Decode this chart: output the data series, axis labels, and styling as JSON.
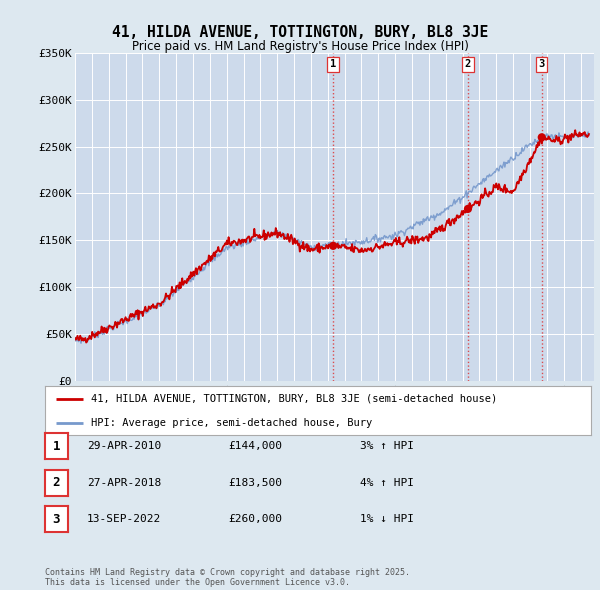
{
  "title": "41, HILDA AVENUE, TOTTINGTON, BURY, BL8 3JE",
  "subtitle": "Price paid vs. HM Land Registry's House Price Index (HPI)",
  "background_color": "#dde8f0",
  "plot_bg_color": "#cddaeb",
  "ylim": [
    0,
    350000
  ],
  "yticks": [
    0,
    50000,
    100000,
    150000,
    200000,
    250000,
    300000,
    350000
  ],
  "ytick_labels": [
    "£0",
    "£50K",
    "£100K",
    "£150K",
    "£200K",
    "£250K",
    "£300K",
    "£350K"
  ],
  "xlim_start": 1995.0,
  "xlim_end": 2025.8,
  "sale_dates": [
    2010.32,
    2018.32,
    2022.7
  ],
  "sale_prices": [
    144000,
    183500,
    260000
  ],
  "sale_labels": [
    "1",
    "2",
    "3"
  ],
  "vline_color": "#dd3333",
  "legend_entries": [
    "41, HILDA AVENUE, TOTTINGTON, BURY, BL8 3JE (semi-detached house)",
    "HPI: Average price, semi-detached house, Bury"
  ],
  "table_entries": [
    {
      "num": "1",
      "date": "29-APR-2010",
      "price": "£144,000",
      "hpi": "3% ↑ HPI"
    },
    {
      "num": "2",
      "date": "27-APR-2018",
      "price": "£183,500",
      "hpi": "4% ↑ HPI"
    },
    {
      "num": "3",
      "date": "13-SEP-2022",
      "price": "£260,000",
      "hpi": "1% ↓ HPI"
    }
  ],
  "footnote": "Contains HM Land Registry data © Crown copyright and database right 2025.\nThis data is licensed under the Open Government Licence v3.0.",
  "red_line_color": "#cc0000",
  "blue_line_color": "#7799cc"
}
